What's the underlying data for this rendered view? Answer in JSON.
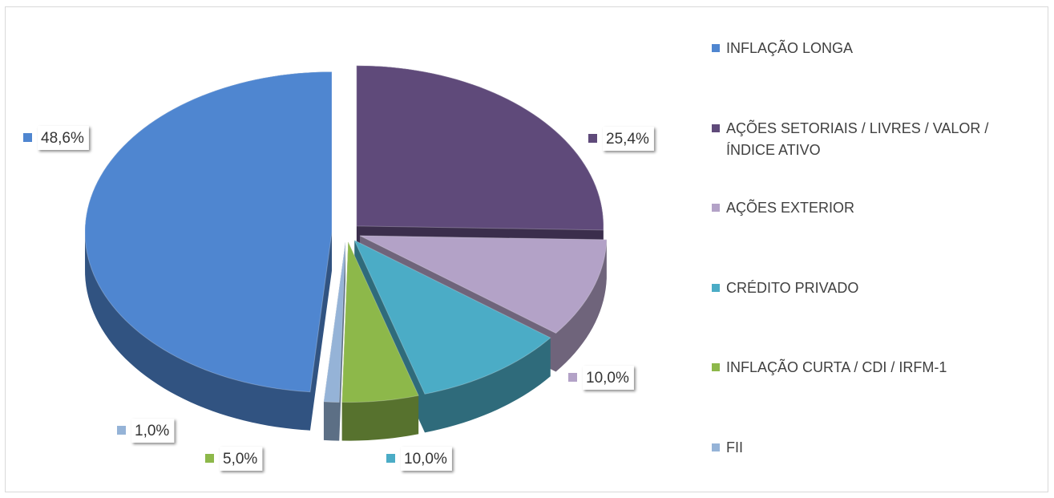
{
  "chart_data": {
    "type": "pie",
    "categories": [
      "INFLAÇÃO LONGA",
      "AÇÕES SETORIAIS / LIVRES / VALOR / ÍNDICE ATIVO",
      "AÇÕES EXTERIOR",
      "CRÉDITO PRIVADO",
      "INFLAÇÃO CURTA / CDI / IRFM-1",
      "FII"
    ],
    "values": [
      48.6,
      25.4,
      10.0,
      10.0,
      5.0,
      1.0
    ],
    "value_labels": [
      "48,6%",
      "25,4%",
      "10,0%",
      "10,0%",
      "5,0%",
      "1,0%"
    ],
    "colors": [
      "#4f86d0",
      "#5f4a7a",
      "#b3a2c7",
      "#4bacc6",
      "#8db84a",
      "#95b3d7"
    ],
    "legend": "right"
  }
}
